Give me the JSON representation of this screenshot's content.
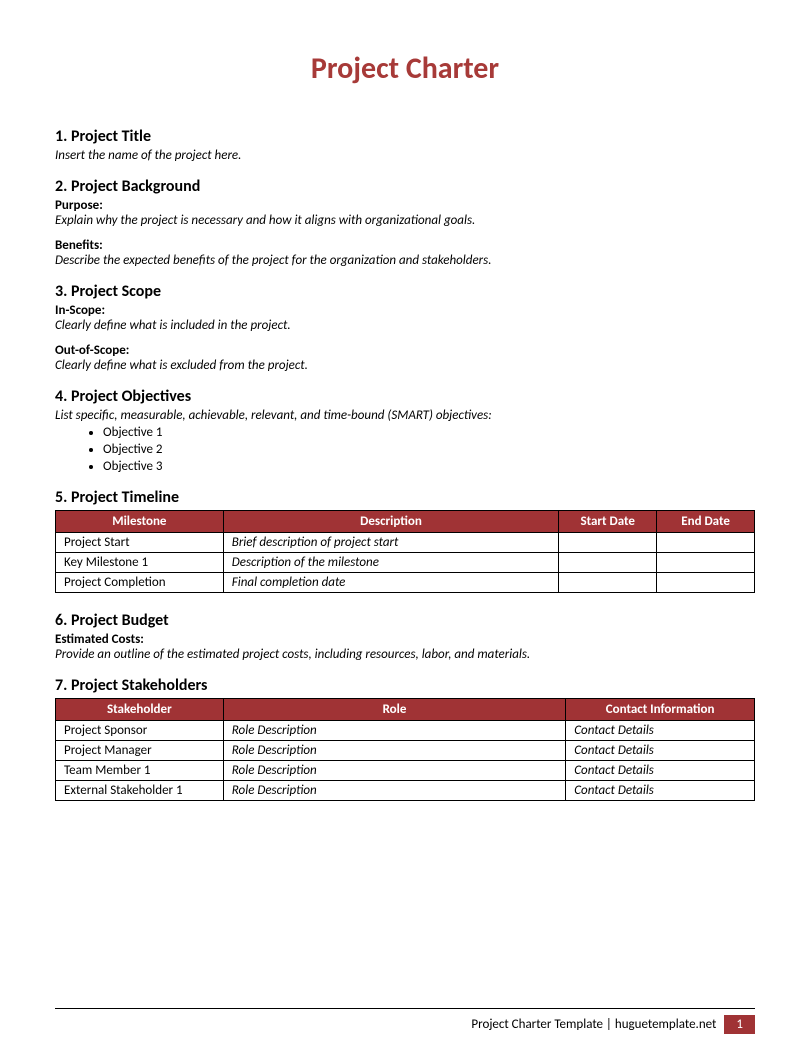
{
  "colors": {
    "accent": "#a73a38",
    "header_bg": "#a03335",
    "text": "#000000",
    "white": "#ffffff"
  },
  "title": "Project Charter",
  "sections": {
    "s1": {
      "heading": "1. Project Title",
      "instruction": "Insert the name of the project here."
    },
    "s2": {
      "heading": "2. Project Background",
      "purpose_label": "Purpose:",
      "purpose_text": "Explain why the project is necessary and how it aligns with organizational goals.",
      "benefits_label": "Benefits:",
      "benefits_text": "Describe the expected benefits of the project for the organization and stakeholders."
    },
    "s3": {
      "heading": "3. Project Scope",
      "in_label": "In-Scope:",
      "in_text": "Clearly define what is included in the project.",
      "out_label": "Out-of-Scope:",
      "out_text": "Clearly define what is excluded from the project."
    },
    "s4": {
      "heading": "4. Project Objectives",
      "instruction": "List specific, measurable, achievable, relevant, and time-bound (SMART) objectives:",
      "items": [
        "Objective 1",
        "Objective 2",
        "Objective 3"
      ]
    },
    "s5": {
      "heading": "5. Project Timeline",
      "columns": [
        "Milestone",
        "Description",
        "Start Date",
        "End Date"
      ],
      "rows": [
        {
          "milestone": "Project Start",
          "desc": "Brief description of project start",
          "start": "",
          "end": ""
        },
        {
          "milestone": "Key Milestone 1",
          "desc": "Description of the milestone",
          "start": "",
          "end": ""
        },
        {
          "milestone": "Project Completion",
          "desc": "Final completion date",
          "start": "",
          "end": ""
        }
      ]
    },
    "s6": {
      "heading": "6. Project Budget",
      "cost_label": "Estimated Costs:",
      "cost_text": "Provide an outline of the estimated project costs, including resources, labor, and materials."
    },
    "s7": {
      "heading": "7. Project Stakeholders",
      "columns": [
        "Stakeholder",
        "Role",
        "Contact Information"
      ],
      "rows": [
        {
          "name": "Project Sponsor",
          "role": "Role Description",
          "contact": "Contact Details"
        },
        {
          "name": "Project Manager",
          "role": "Role Description",
          "contact": "Contact Details"
        },
        {
          "name": "Team Member 1",
          "role": "Role Description",
          "contact": "Contact Details"
        },
        {
          "name": "External Stakeholder 1",
          "role": "Role Description",
          "contact": "Contact Details"
        }
      ]
    }
  },
  "footer": {
    "text": "Project Charter Template  |  huguetemplate.net",
    "page": "1"
  }
}
